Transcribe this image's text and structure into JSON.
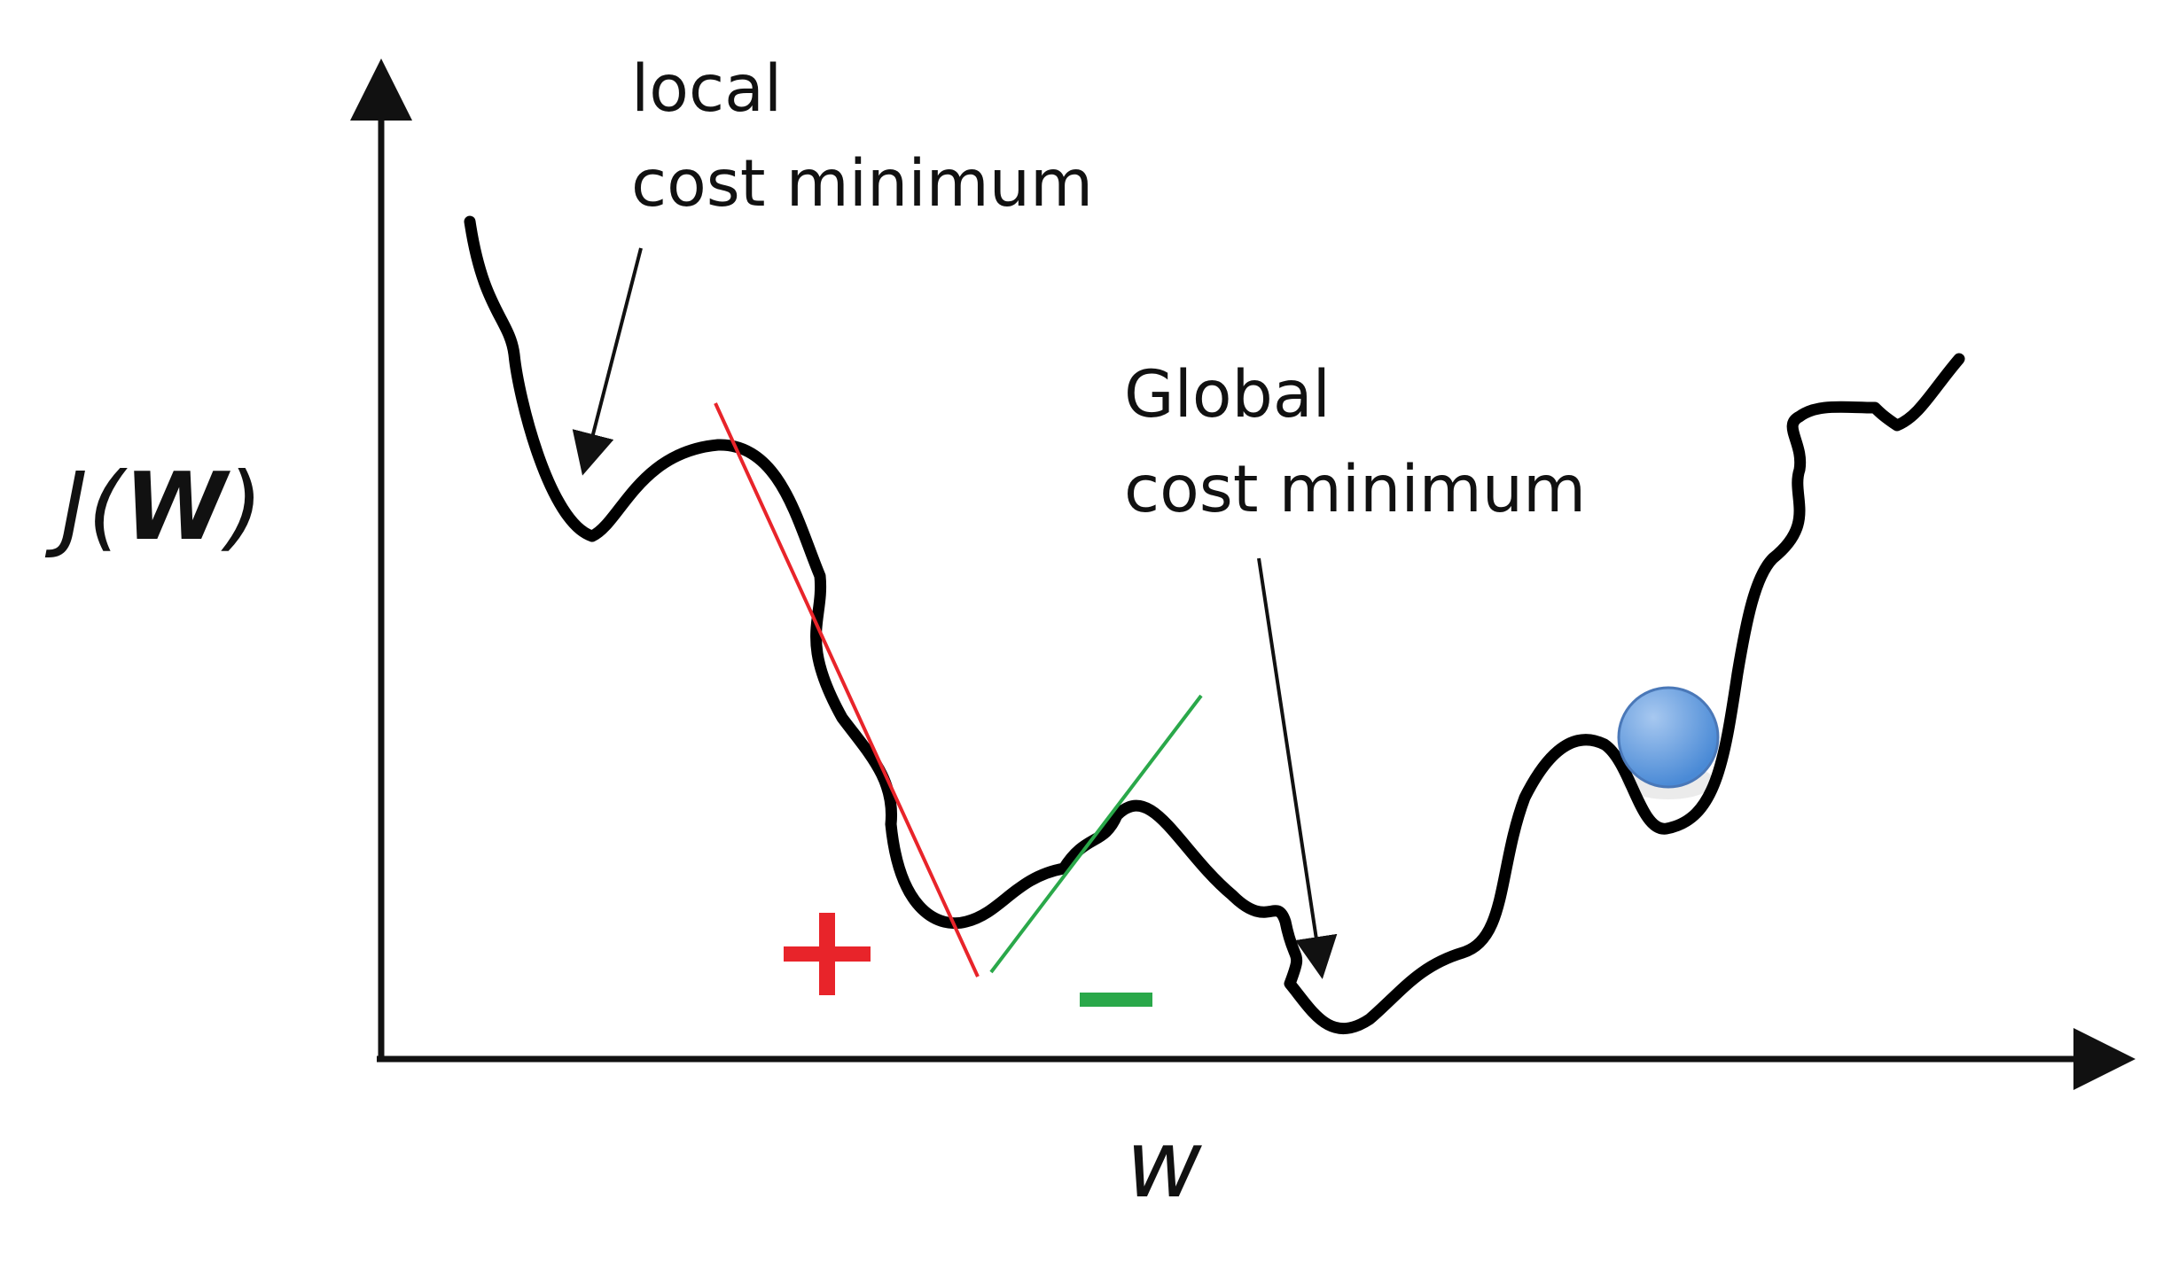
{
  "axes": {
    "y_label_prefix": "J(",
    "y_label_var": "W",
    "y_label_suffix": ")",
    "x_label": "w"
  },
  "annotations": {
    "local_line1": "local",
    "local_line2": "cost minimum",
    "global_line1": "Global",
    "global_line2": "cost minimum"
  },
  "signs": {
    "plus": "+",
    "minus": "−"
  },
  "colors": {
    "curve": "#000000",
    "tangent_positive": "#e8242a",
    "tangent_negative": "#2aa84a",
    "plus_sign": "#e8242a",
    "minus_sign": "#2aa84a",
    "ball": "#4a8ad6",
    "ball_highlight": "#a7c8f0"
  },
  "icons": {
    "ball": "ball-icon"
  }
}
